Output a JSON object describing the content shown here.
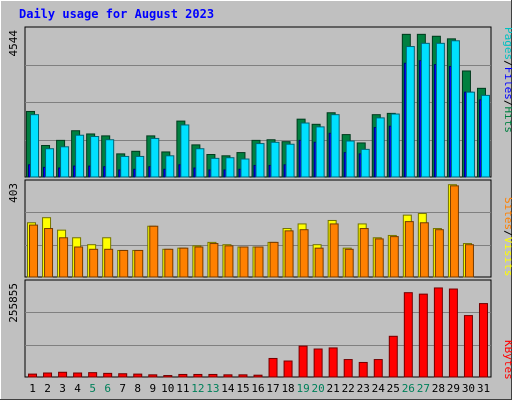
{
  "chart_data": {
    "type": "bar",
    "title": "Daily usage for August 2023",
    "categories": [
      "1",
      "2",
      "3",
      "4",
      "5",
      "6",
      "7",
      "8",
      "9",
      "10",
      "11",
      "12",
      "13",
      "14",
      "15",
      "16",
      "17",
      "18",
      "19",
      "20",
      "21",
      "22",
      "23",
      "24",
      "25",
      "26",
      "27",
      "28",
      "29",
      "30",
      "31"
    ],
    "weekend_days": [
      5,
      6,
      12,
      13,
      19,
      20,
      26,
      27
    ],
    "panels": [
      {
        "name": "hits-files-pages",
        "max_label": "4544",
        "ylim": [
          0,
          4544
        ],
        "legend": [
          {
            "text": "Hits",
            "color": "#008040"
          },
          {
            "text": "/",
            "color": "#000000"
          },
          {
            "text": "Files",
            "color": "#0000ff"
          },
          {
            "text": "/",
            "color": "#000000"
          },
          {
            "text": "Pages",
            "color": "#00c0c0"
          }
        ],
        "series": [
          {
            "name": "Hits",
            "color": "#008040",
            "values": [
              2040,
              980,
              1140,
              1440,
              1340,
              1280,
              720,
              800,
              1280,
              780,
              1740,
              1000,
              700,
              660,
              760,
              1140,
              1160,
              1100,
              1800,
              1640,
              2000,
              1320,
              1060,
              1940,
              1980,
              4440,
              4440,
              4380,
              4300,
              3300,
              2760
            ]
          },
          {
            "name": "Files",
            "color": "#0000ff",
            "values": [
              380,
              300,
              280,
              340,
              340,
              320,
              220,
              240,
              320,
              240,
              380,
              280,
              220,
              220,
              240,
              360,
              360,
              380,
              1140,
              1080,
              1360,
              760,
              720,
              1540,
              1580,
              3540,
              3620,
              3500,
              3440,
              2640,
              2400
            ]
          },
          {
            "name": "Pages",
            "color": "#00e0ff",
            "values": [
              1940,
              880,
              940,
              1300,
              1260,
              1160,
              640,
              640,
              1200,
              660,
              1620,
              880,
              580,
              600,
              560,
              1040,
              1080,
              1020,
              1680,
              1560,
              1940,
              1120,
              860,
              1840,
              1960,
              4060,
              4160,
              4160,
              4240,
              2640,
              2540
            ]
          }
        ]
      },
      {
        "name": "visits-sites",
        "max_label": "403",
        "ylim": [
          0,
          403
        ],
        "legend": [
          {
            "text": "Visits",
            "color": "#ffff00"
          },
          {
            "text": "/",
            "color": "#000000"
          },
          {
            "text": "Sites",
            "color": "#ff8000"
          }
        ],
        "series": [
          {
            "name": "Visits",
            "color": "#ffff00",
            "values": [
              235,
              257,
              203,
              170,
              140,
              170,
              115,
              115,
              220,
              120,
              125,
              135,
              150,
              140,
              130,
              130,
              150,
              210,
              230,
              140,
              245,
              125,
              230,
              170,
              180,
              268,
              275,
              210,
              400,
              145,
              null
            ]
          },
          {
            "name": "Sites",
            "color": "#ff8000",
            "values": [
              225,
              210,
              170,
              130,
              120,
              120,
              115,
              115,
              220,
              120,
              125,
              130,
              145,
              135,
              130,
              130,
              150,
              200,
              205,
              125,
              230,
              120,
              210,
              165,
              175,
              240,
              235,
              205,
              395,
              140,
              null
            ]
          }
        ]
      },
      {
        "name": "kbytes",
        "max_label": "255855",
        "ylim": [
          0,
          255855
        ],
        "legend": [
          {
            "text": "KBytes",
            "color": "#ff0000"
          }
        ],
        "series": [
          {
            "name": "KBytes",
            "color": "#ff0000",
            "values": [
              8000,
              11000,
              13000,
              11000,
              12000,
              10000,
              9000,
              8000,
              6000,
              4000,
              7000,
              7000,
              7000,
              6000,
              6000,
              5000,
              51000,
              44000,
              85000,
              77000,
              80000,
              48000,
              40000,
              48000,
              112000,
              232000,
              228000,
              245000,
              242000,
              169000,
              202000
            ]
          }
        ]
      }
    ]
  }
}
